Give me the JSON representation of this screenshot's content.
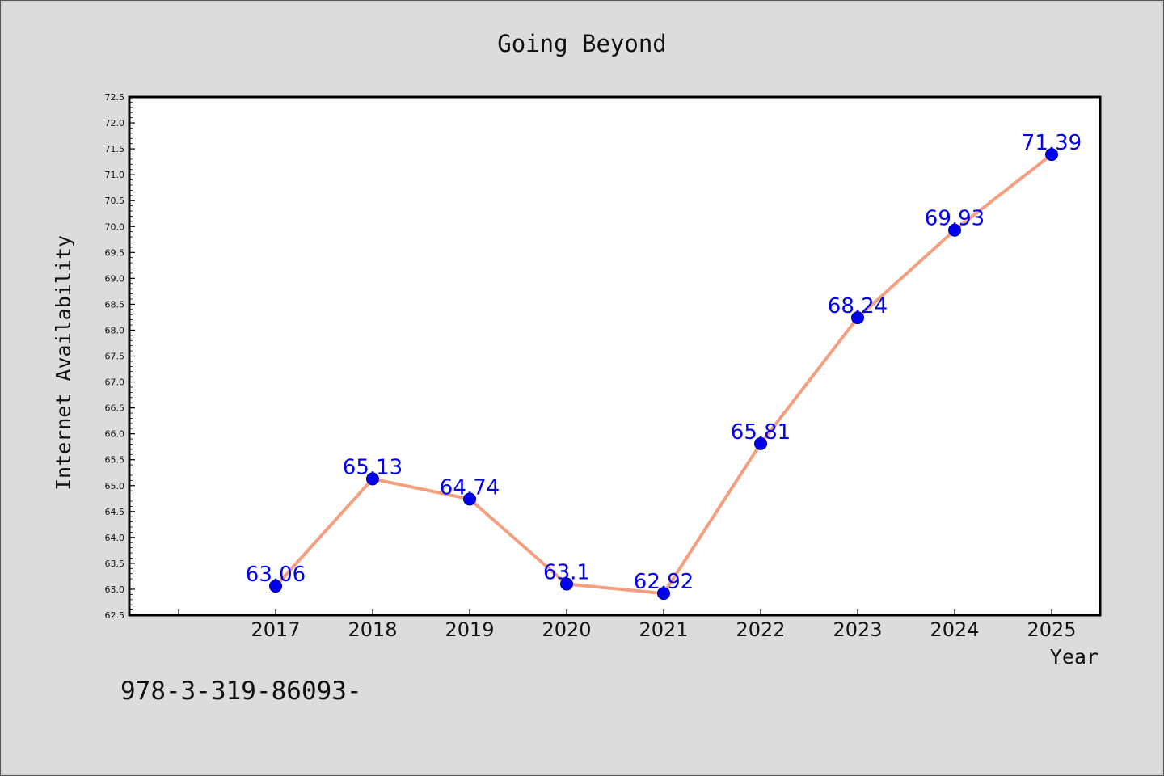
{
  "chart_data": {
    "type": "line",
    "title": "Going Beyond",
    "xlabel": "Year",
    "ylabel": "Internet Availability",
    "x": [
      "2017",
      "2018",
      "2019",
      "2020",
      "2021",
      "2022",
      "2023",
      "2024",
      "2025"
    ],
    "series": [
      {
        "values": [
          63.06,
          65.13,
          64.74,
          63.1,
          62.92,
          65.81,
          68.24,
          69.93,
          71.39
        ],
        "labels": [
          "63.06",
          "65.13",
          "64.74",
          "63.1",
          "62.92",
          "65.81",
          "68.24",
          "69.93",
          "71.39"
        ]
      }
    ],
    "ylim": [
      62.5,
      72.5
    ],
    "yticks": [
      "62.5",
      "63.0",
      "63.5",
      "64.0",
      "64.5",
      "65.0",
      "65.5",
      "66.0",
      "66.5",
      "67.0",
      "67.5",
      "68.0",
      "68.5",
      "69.0",
      "69.5",
      "70.0",
      "70.5",
      "71.0",
      "71.5",
      "72.0",
      "72.5"
    ],
    "grid": false,
    "colors": {
      "line": "#f4a080",
      "marker": "#0000ee",
      "marker_edge": "#00008b",
      "label": "#0000ee",
      "plot_bg": "#ffffff",
      "page_bg": "#dcdcdc"
    }
  },
  "footer": {
    "text": "978-3-319-86093-"
  }
}
